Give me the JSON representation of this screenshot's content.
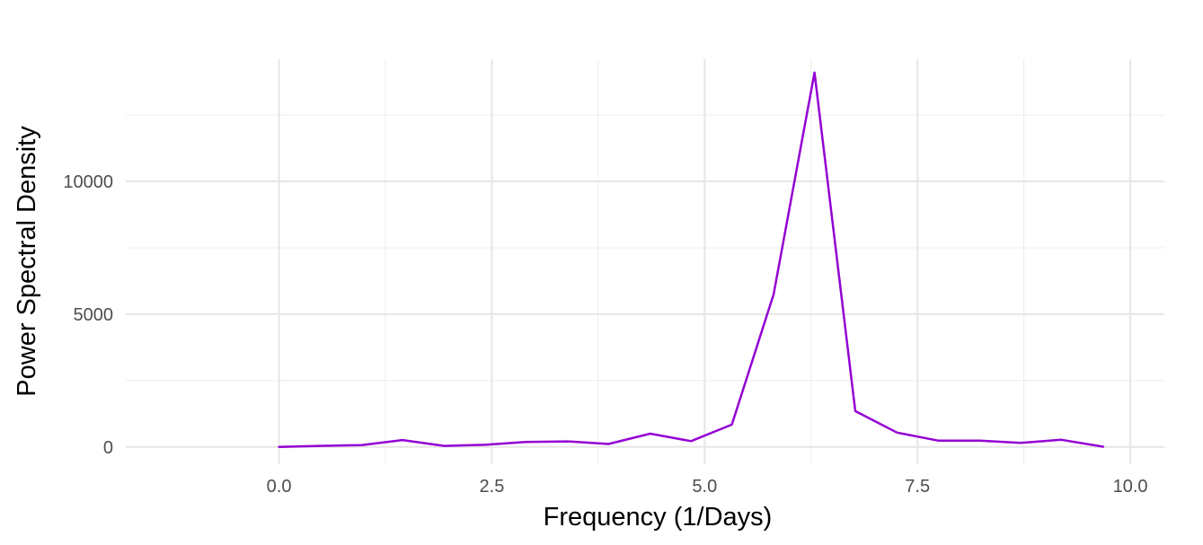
{
  "chart_data": {
    "type": "line",
    "title": "",
    "xlabel": "Frequency (1/Days)",
    "ylabel": "Power Spectral Density",
    "xlim": [
      -1.8,
      10.4
    ],
    "ylim": [
      -650,
      14600
    ],
    "x_ticks": [
      0.0,
      2.5,
      5.0,
      7.5,
      10.0
    ],
    "x_tick_labels": [
      "0.0",
      "2.5",
      "5.0",
      "7.5",
      "10.0"
    ],
    "y_ticks": [
      0,
      5000,
      10000
    ],
    "y_tick_labels": [
      "0",
      "5000",
      "10000"
    ],
    "grid": true,
    "legend": "none",
    "series": [
      {
        "color": "#9400D3",
        "x": [
          0.0,
          0.48,
          0.97,
          1.45,
          1.94,
          2.42,
          2.9,
          3.39,
          3.87,
          4.36,
          4.84,
          5.32,
          5.81,
          6.29,
          6.77,
          7.26,
          7.74,
          8.23,
          8.71,
          9.19,
          9.68
        ],
        "y": [
          0,
          40,
          70,
          260,
          40,
          80,
          190,
          210,
          110,
          500,
          220,
          840,
          5750,
          14100,
          1350,
          540,
          240,
          240,
          150,
          270,
          10
        ]
      }
    ]
  }
}
